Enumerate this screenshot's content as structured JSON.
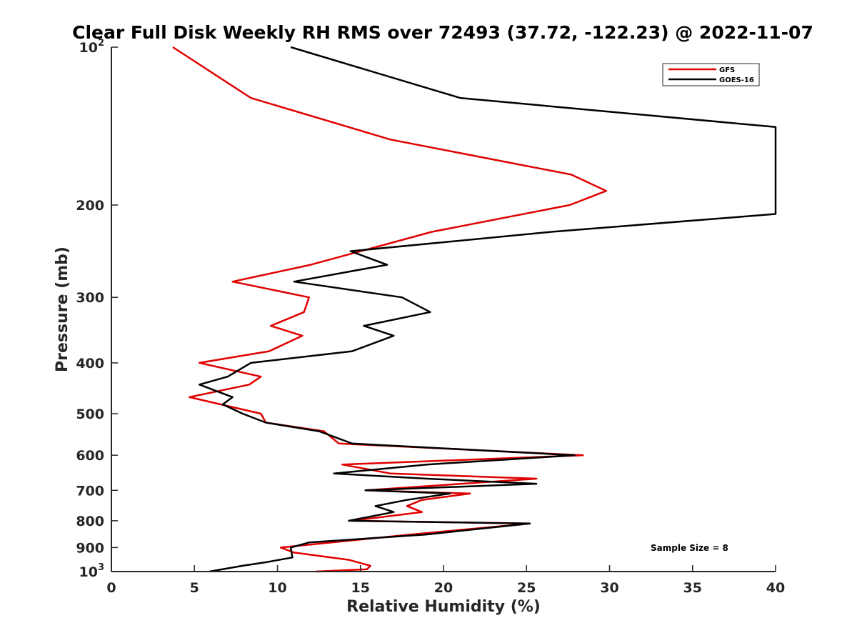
{
  "chart_data": {
    "type": "line",
    "title": "Clear Full Disk Weekly RH RMS over 72493 (37.72, -122.23) @ 2022-11-07",
    "xlabel": "Relative Humidity (%)",
    "ylabel": "Pressure (mb)",
    "xlim": [
      0,
      40
    ],
    "ylim": [
      100,
      1000
    ],
    "y_scale": "log",
    "y_reversed": true,
    "x_ticks": [
      "0",
      "5",
      "10",
      "15",
      "20",
      "25",
      "30",
      "35",
      "40"
    ],
    "y_ticks": [
      {
        "value": 100,
        "base": "10",
        "sup": "2"
      },
      {
        "value": 200,
        "base": "200",
        "sup": ""
      },
      {
        "value": 300,
        "base": "300",
        "sup": ""
      },
      {
        "value": 400,
        "base": "400",
        "sup": ""
      },
      {
        "value": 500,
        "base": "500",
        "sup": ""
      },
      {
        "value": 600,
        "base": "600",
        "sup": ""
      },
      {
        "value": 700,
        "base": "700",
        "sup": ""
      },
      {
        "value": 800,
        "base": "800",
        "sup": ""
      },
      {
        "value": 900,
        "base": "900",
        "sup": ""
      },
      {
        "value": 1000,
        "base": "10",
        "sup": "3"
      }
    ],
    "grid": false,
    "legend_position": "top-right",
    "annotation": "Sample Size = 8",
    "series": [
      {
        "name": "GFS",
        "color": "#e00000",
        "points": [
          [
            3.7,
            100
          ],
          [
            8.4,
            125
          ],
          [
            16.8,
            150
          ],
          [
            27.7,
            175
          ],
          [
            29.8,
            188
          ],
          [
            27.6,
            200
          ],
          [
            19.3,
            225
          ],
          [
            12.0,
            260
          ],
          [
            7.3,
            280
          ],
          [
            11.9,
            300
          ],
          [
            11.6,
            320
          ],
          [
            9.6,
            340
          ],
          [
            11.5,
            355
          ],
          [
            9.5,
            380
          ],
          [
            5.3,
            400
          ],
          [
            9.0,
            425
          ],
          [
            8.3,
            440
          ],
          [
            4.7,
            465
          ],
          [
            9.0,
            500
          ],
          [
            9.3,
            520
          ],
          [
            12.8,
            540
          ],
          [
            13.7,
            570
          ],
          [
            28.4,
            600
          ],
          [
            13.9,
            625
          ],
          [
            16.8,
            650
          ],
          [
            25.6,
            665
          ],
          [
            15.3,
            700
          ],
          [
            21.6,
            710
          ],
          [
            18.7,
            730
          ],
          [
            17.8,
            750
          ],
          [
            18.7,
            770
          ],
          [
            14.5,
            800
          ],
          [
            25.2,
            810
          ],
          [
            18.0,
            850
          ],
          [
            10.2,
            900
          ],
          [
            11.0,
            920
          ],
          [
            14.3,
            950
          ],
          [
            15.6,
            975
          ],
          [
            15.4,
            990
          ],
          [
            12.3,
            1000
          ]
        ]
      },
      {
        "name": "GOES-16",
        "color": "#000000",
        "points": [
          [
            10.8,
            100
          ],
          [
            21.0,
            125
          ],
          [
            40.0,
            142
          ],
          [
            40.0,
            208
          ],
          [
            26.5,
            225
          ],
          [
            14.4,
            245
          ],
          [
            16.6,
            260
          ],
          [
            11.0,
            280
          ],
          [
            17.5,
            300
          ],
          [
            19.2,
            320
          ],
          [
            15.2,
            340
          ],
          [
            17.0,
            355
          ],
          [
            14.5,
            380
          ],
          [
            8.4,
            400
          ],
          [
            7.0,
            425
          ],
          [
            5.3,
            440
          ],
          [
            7.3,
            465
          ],
          [
            6.7,
            480
          ],
          [
            7.9,
            500
          ],
          [
            9.3,
            520
          ],
          [
            12.5,
            540
          ],
          [
            14.5,
            570
          ],
          [
            27.9,
            600
          ],
          [
            19.0,
            625
          ],
          [
            13.4,
            650
          ],
          [
            19.0,
            665
          ],
          [
            25.6,
            680
          ],
          [
            15.3,
            700
          ],
          [
            20.4,
            710
          ],
          [
            17.8,
            730
          ],
          [
            15.9,
            750
          ],
          [
            17.0,
            770
          ],
          [
            14.3,
            800
          ],
          [
            25.2,
            810
          ],
          [
            18.9,
            850
          ],
          [
            11.9,
            880
          ],
          [
            10.8,
            900
          ],
          [
            10.9,
            940
          ],
          [
            9.3,
            960
          ],
          [
            7.9,
            975
          ],
          [
            5.9,
            1000
          ]
        ]
      }
    ]
  }
}
